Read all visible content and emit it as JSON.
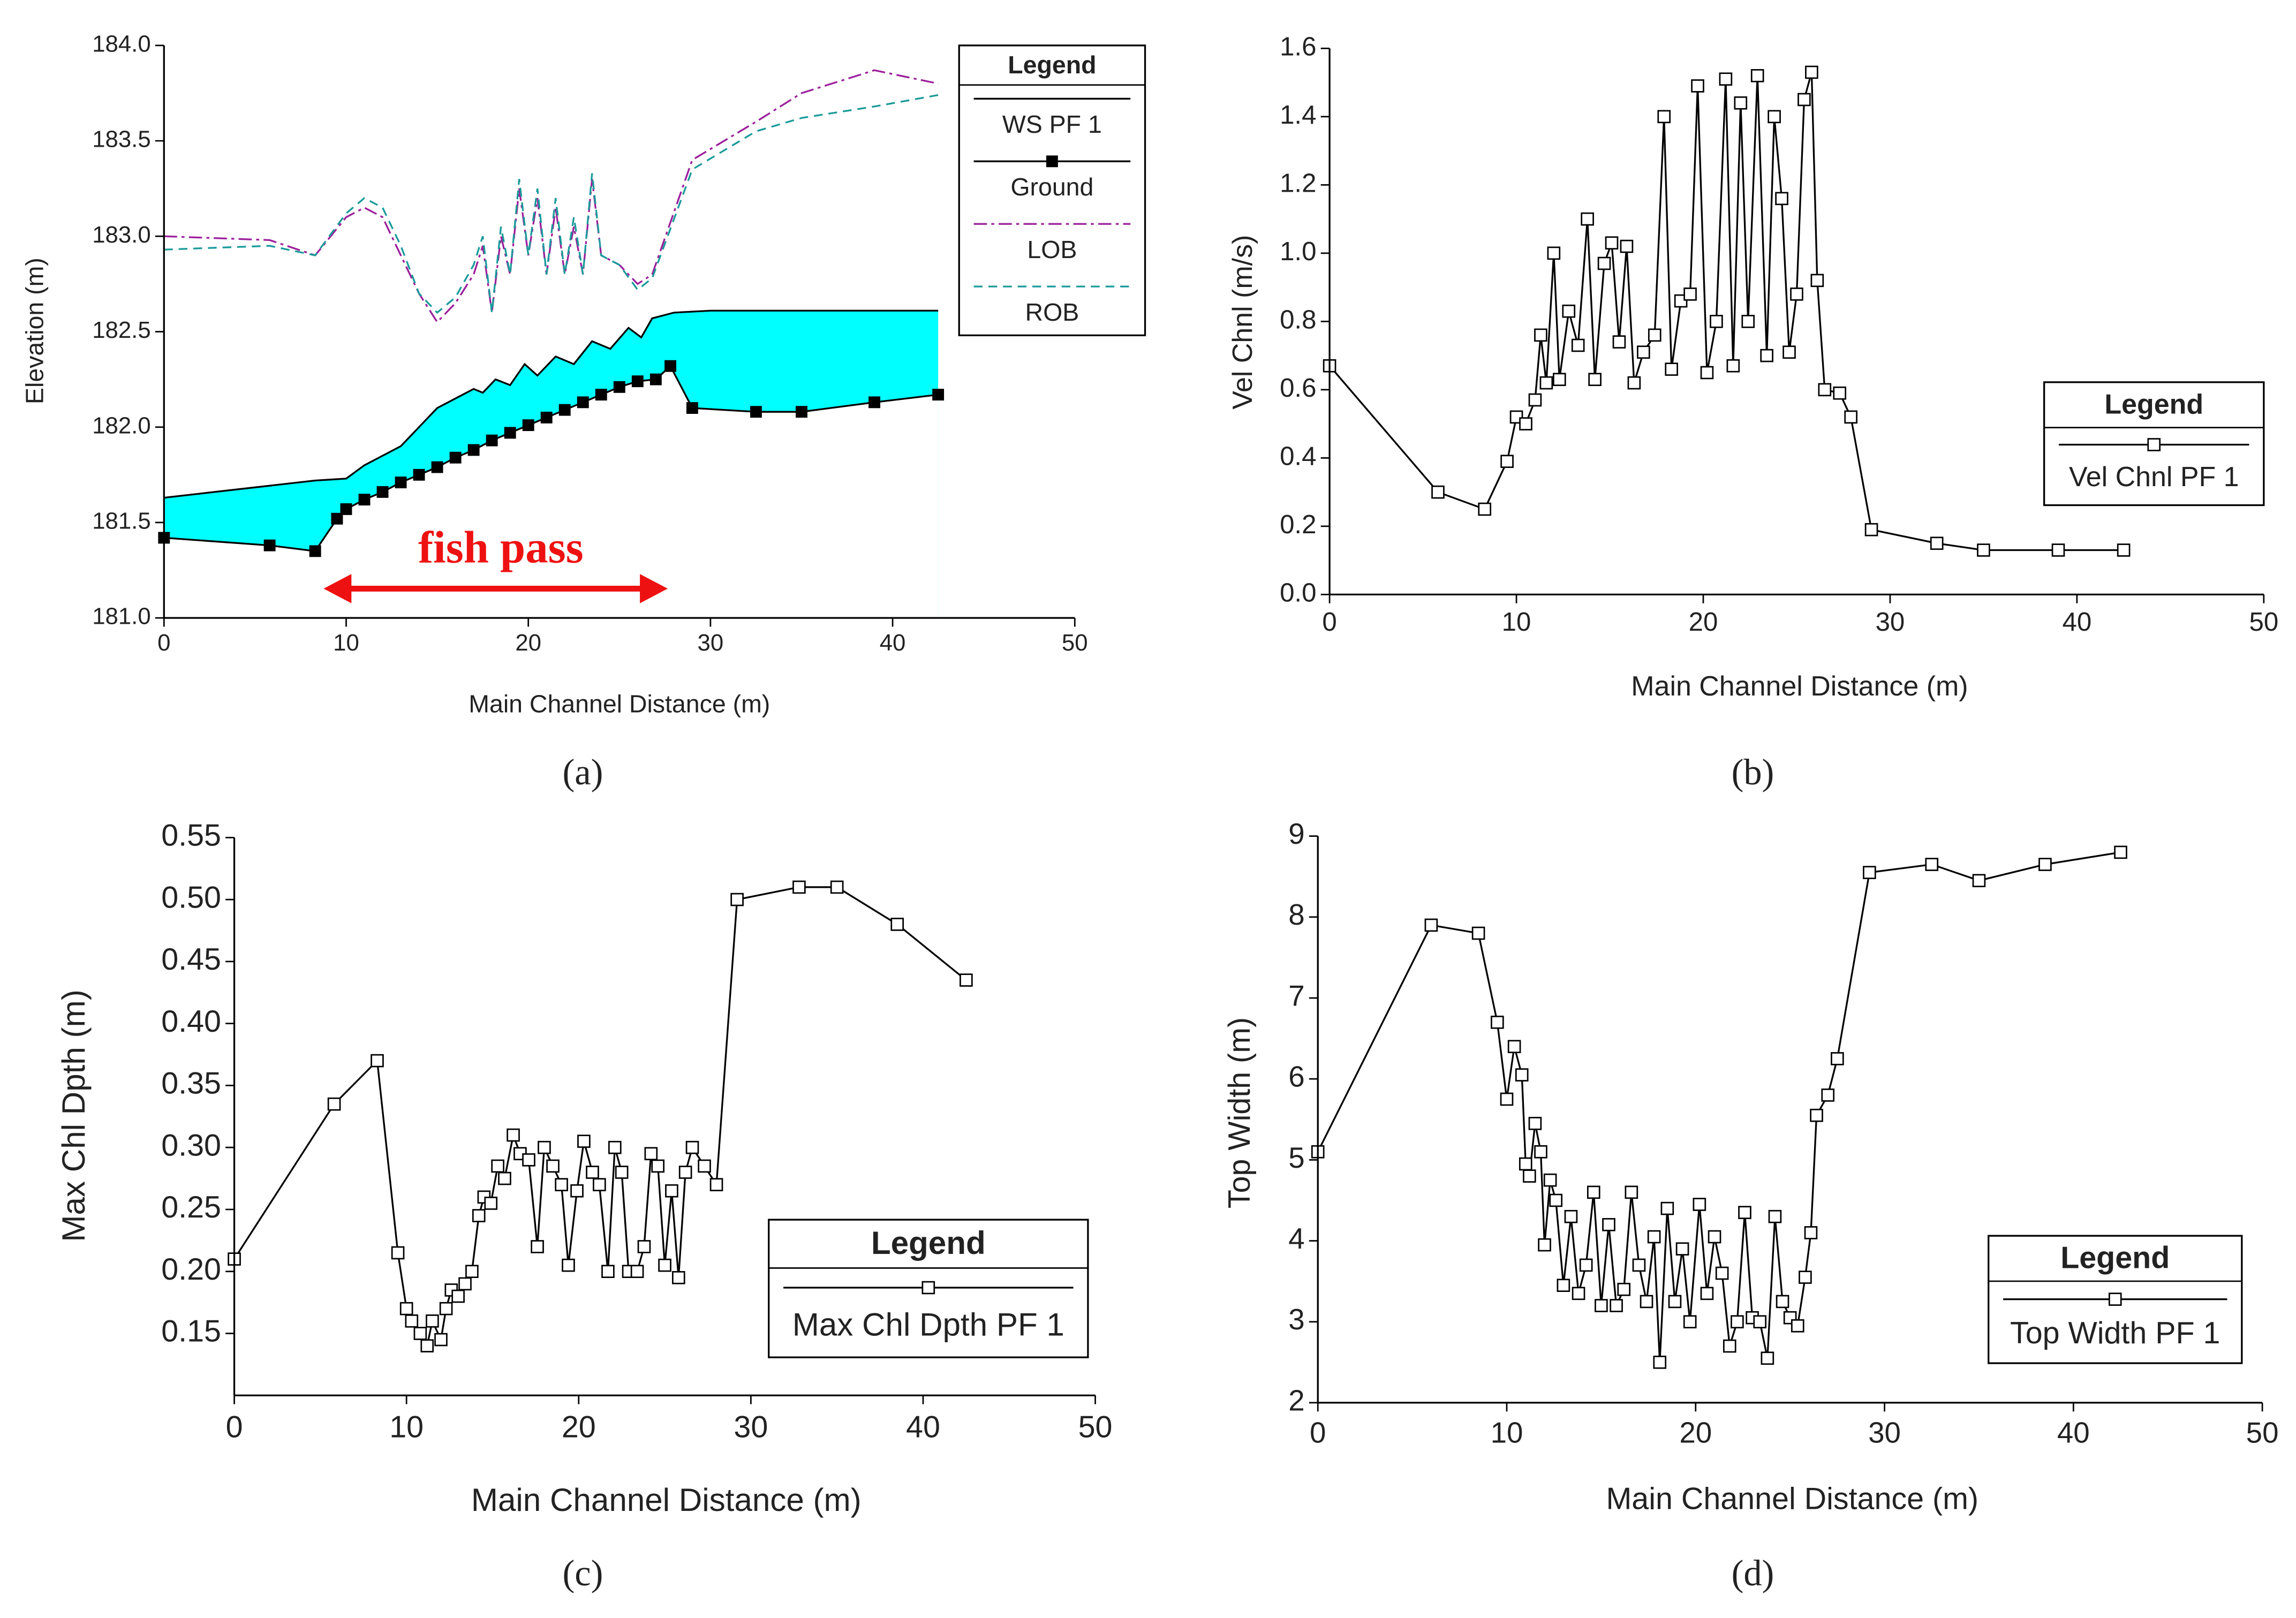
{
  "chart_data": [
    {
      "type": "line",
      "panel_label": "(a)",
      "x_label": "Main Channel Distance (m)",
      "y_label": "Elevation (m)",
      "xlim": [
        0,
        50
      ],
      "xticks": [
        0,
        10,
        20,
        30,
        40,
        50
      ],
      "ylim": [
        181,
        184
      ],
      "yticks": [
        {
          "value": 181,
          "label": "181.0"
        },
        181.5,
        {
          "value": 182,
          "label": "182.0"
        },
        182.5,
        {
          "value": 183,
          "label": "183.0"
        },
        183.5,
        {
          "value": 184,
          "label": "184.0"
        }
      ],
      "legend_title": "Legend",
      "annotation": "fish pass",
      "series": [
        {
          "name": "WS  PF 1",
          "color": "#000000",
          "fill": "#00ffff",
          "fill_to": "Ground",
          "x": [
            0,
            8.3,
            10,
            11,
            12,
            13,
            14,
            14.5,
            15,
            16,
            17,
            17.5,
            18.2,
            19,
            19.8,
            20.5,
            21.5,
            22.5,
            23.5,
            24.5,
            25.5,
            26.2,
            26.8,
            28,
            30,
            42.5
          ],
          "values": [
            181.63,
            181.72,
            181.73,
            181.8,
            181.85,
            181.9,
            182.0,
            182.05,
            182.1,
            182.15,
            182.2,
            182.18,
            182.25,
            182.22,
            182.33,
            182.27,
            182.37,
            182.33,
            182.45,
            182.41,
            182.52,
            182.47,
            182.57,
            182.6,
            182.61,
            182.61
          ]
        },
        {
          "name": "Ground",
          "color": "#000000",
          "marker": "filled-square",
          "x": [
            0,
            5.8,
            8.3,
            9.5,
            10,
            11,
            12,
            13,
            14,
            15,
            16,
            17,
            18,
            19,
            20,
            21,
            22,
            23,
            24,
            25,
            26,
            27,
            27.8,
            29,
            32.5,
            35,
            39,
            42.5
          ],
          "values": [
            181.42,
            181.38,
            181.35,
            181.52,
            181.57,
            181.62,
            181.66,
            181.71,
            181.75,
            181.79,
            181.84,
            181.88,
            181.93,
            181.97,
            182.01,
            182.05,
            182.09,
            182.13,
            182.17,
            182.21,
            182.24,
            182.25,
            182.32,
            182.1,
            182.08,
            182.08,
            182.13,
            182.17
          ]
        },
        {
          "name": "LOB",
          "color": "#9b1f9b",
          "dash": "dash-dot",
          "x": [
            0,
            5.8,
            8.3,
            10,
            11,
            12,
            13,
            14,
            15,
            16,
            17,
            17.5,
            18,
            18.5,
            19,
            19.5,
            20,
            20.5,
            21,
            21.5,
            22,
            22.5,
            23,
            23.5,
            24,
            25,
            26,
            26.8,
            29,
            32.5,
            35,
            39,
            42.5
          ],
          "values": [
            183.0,
            182.98,
            182.9,
            183.1,
            183.15,
            183.1,
            182.9,
            182.7,
            182.55,
            182.65,
            182.8,
            182.95,
            182.6,
            183.0,
            182.8,
            183.25,
            182.9,
            183.2,
            182.8,
            183.15,
            182.8,
            183.05,
            182.8,
            183.3,
            182.9,
            182.85,
            182.75,
            182.8,
            183.4,
            183.6,
            183.75,
            183.87,
            183.8
          ]
        },
        {
          "name": "ROB",
          "color": "#1a9a9a",
          "dash": "dash",
          "x": [
            0,
            5.8,
            8.3,
            10,
            11,
            12,
            13,
            14,
            15,
            16,
            17,
            17.5,
            18,
            18.5,
            19,
            19.5,
            20,
            20.5,
            21,
            21.5,
            22,
            22.5,
            23,
            23.5,
            24,
            25,
            26,
            26.8,
            29,
            32.5,
            35,
            39,
            42.5
          ],
          "values": [
            182.93,
            182.95,
            182.9,
            183.12,
            183.2,
            183.15,
            182.95,
            182.7,
            182.6,
            182.68,
            182.85,
            183.0,
            182.6,
            183.05,
            182.8,
            183.3,
            182.9,
            183.25,
            182.8,
            183.2,
            182.8,
            183.1,
            182.8,
            183.33,
            182.9,
            182.85,
            182.72,
            182.78,
            183.35,
            183.55,
            183.62,
            183.68,
            183.74
          ]
        }
      ]
    },
    {
      "type": "line",
      "panel_label": "(b)",
      "x_label": "Main Channel Distance (m)",
      "y_label": "Vel Chnl (m/s)",
      "xlim": [
        0,
        50
      ],
      "xticks": [
        0,
        10,
        20,
        30,
        40,
        50
      ],
      "ylim": [
        0,
        1.6
      ],
      "yticks": [
        {
          "value": 0,
          "label": "0.0"
        },
        0.2,
        0.4,
        0.6,
        0.8,
        {
          "value": 1,
          "label": "1.0"
        },
        1.2,
        1.4,
        1.6
      ],
      "legend_title": "Legend",
      "series": [
        {
          "name": "Vel Chnl PF 1",
          "color": "#000000",
          "marker": "open-square",
          "x": [
            0,
            5.8,
            8.3,
            9.5,
            10,
            10.5,
            11,
            11.3,
            11.6,
            12,
            12.3,
            12.8,
            13.3,
            13.8,
            14.2,
            14.7,
            15.1,
            15.5,
            15.9,
            16.3,
            16.8,
            17.4,
            17.9,
            18.3,
            18.8,
            19.3,
            19.7,
            20.2,
            20.7,
            21.2,
            21.6,
            22,
            22.4,
            22.9,
            23.4,
            23.8,
            24.2,
            24.6,
            25,
            25.4,
            25.8,
            26.1,
            26.5,
            27.3,
            27.9,
            29,
            32.5,
            35,
            39,
            42.5
          ],
          "values": [
            0.67,
            0.3,
            0.25,
            0.39,
            0.52,
            0.5,
            0.57,
            0.76,
            0.62,
            1.0,
            0.63,
            0.83,
            0.73,
            1.1,
            0.63,
            0.97,
            1.03,
            0.74,
            1.02,
            0.62,
            0.71,
            0.76,
            1.4,
            0.66,
            0.86,
            0.88,
            1.49,
            0.65,
            0.8,
            1.51,
            0.67,
            1.44,
            0.8,
            1.52,
            0.7,
            1.4,
            1.16,
            0.71,
            0.88,
            1.45,
            1.53,
            0.92,
            0.6,
            0.59,
            0.52,
            0.19,
            0.15,
            0.13,
            0.13,
            0.13
          ]
        }
      ]
    },
    {
      "type": "line",
      "panel_label": "(c)",
      "x_label": "Main Channel Distance (m)",
      "y_label": "Max Chl Dpth (m)",
      "xlim": [
        0,
        50
      ],
      "xticks": [
        0,
        10,
        20,
        30,
        40,
        50
      ],
      "ylim": [
        0.1,
        0.55
      ],
      "yticks": [
        0.15,
        {
          "value": 0.2,
          "label": "0.20"
        },
        0.25,
        {
          "value": 0.3,
          "label": "0.30"
        },
        0.35,
        {
          "value": 0.4,
          "label": "0.40"
        },
        0.45,
        {
          "value": 0.5,
          "label": "0.50"
        },
        0.55
      ],
      "legend_title": "Legend",
      "series": [
        {
          "name": "Max Chl Dpth PF 1",
          "color": "#000000",
          "marker": "open-square",
          "x": [
            0,
            5.8,
            8.3,
            9.5,
            10,
            10.3,
            10.8,
            11.2,
            11.5,
            12,
            12.3,
            12.6,
            13,
            13.4,
            13.8,
            14.2,
            14.5,
            14.9,
            15.3,
            15.7,
            16.2,
            16.6,
            17.1,
            17.6,
            18,
            18.5,
            19,
            19.4,
            19.9,
            20.3,
            20.8,
            21.2,
            21.7,
            22.1,
            22.5,
            22.9,
            23.4,
            23.8,
            24.2,
            24.6,
            25,
            25.4,
            25.8,
            26.2,
            26.6,
            27.3,
            28,
            29.2,
            32.8,
            35,
            38.5,
            42.5
          ],
          "values": [
            0.21,
            0.335,
            0.37,
            0.215,
            0.17,
            0.16,
            0.15,
            0.14,
            0.16,
            0.145,
            0.17,
            0.185,
            0.18,
            0.19,
            0.2,
            0.245,
            0.26,
            0.255,
            0.285,
            0.275,
            0.31,
            0.295,
            0.29,
            0.22,
            0.3,
            0.285,
            0.27,
            0.205,
            0.265,
            0.305,
            0.28,
            0.27,
            0.2,
            0.3,
            0.28,
            0.2,
            0.2,
            0.22,
            0.295,
            0.285,
            0.205,
            0.265,
            0.195,
            0.28,
            0.3,
            0.285,
            0.27,
            0.5,
            0.51,
            0.51,
            0.48,
            0.435
          ]
        }
      ]
    },
    {
      "type": "line",
      "panel_label": "(d)",
      "x_label": "Main Channel Distance (m)",
      "y_label": "Top Width (m)",
      "xlim": [
        0,
        50
      ],
      "xticks": [
        0,
        10,
        20,
        30,
        40,
        50
      ],
      "ylim": [
        2,
        9
      ],
      "yticks": [
        2,
        3,
        4,
        5,
        6,
        7,
        8,
        9
      ],
      "legend_title": "Legend",
      "series": [
        {
          "name": "Top Width PF 1",
          "color": "#000000",
          "marker": "open-square",
          "x": [
            0,
            6,
            8.5,
            9.5,
            10,
            10.4,
            10.8,
            11,
            11.2,
            11.5,
            11.8,
            12,
            12.3,
            12.6,
            13,
            13.4,
            13.8,
            14.2,
            14.6,
            15,
            15.4,
            15.8,
            16.2,
            16.6,
            17,
            17.4,
            17.8,
            18.1,
            18.5,
            18.9,
            19.3,
            19.7,
            20.2,
            20.6,
            21,
            21.4,
            21.8,
            22.2,
            22.6,
            23,
            23.4,
            23.8,
            24.2,
            24.6,
            25,
            25.4,
            25.8,
            26.1,
            26.4,
            27,
            27.5,
            29.2,
            32.5,
            35,
            38.5,
            42.5
          ],
          "values": [
            5.1,
            7.9,
            7.8,
            6.7,
            5.75,
            6.4,
            6.05,
            4.95,
            4.8,
            5.45,
            5.1,
            3.95,
            4.75,
            4.5,
            3.45,
            4.3,
            3.35,
            3.7,
            4.6,
            3.2,
            4.2,
            3.2,
            3.4,
            4.6,
            3.7,
            3.25,
            4.05,
            2.5,
            4.4,
            3.25,
            3.9,
            3.0,
            4.45,
            3.35,
            4.05,
            3.6,
            2.7,
            3.0,
            4.35,
            3.05,
            3.0,
            2.55,
            4.3,
            3.25,
            3.05,
            2.95,
            3.55,
            4.1,
            5.55,
            5.8,
            6.25,
            8.55,
            8.65,
            8.45,
            8.65,
            8.8
          ]
        }
      ]
    }
  ]
}
